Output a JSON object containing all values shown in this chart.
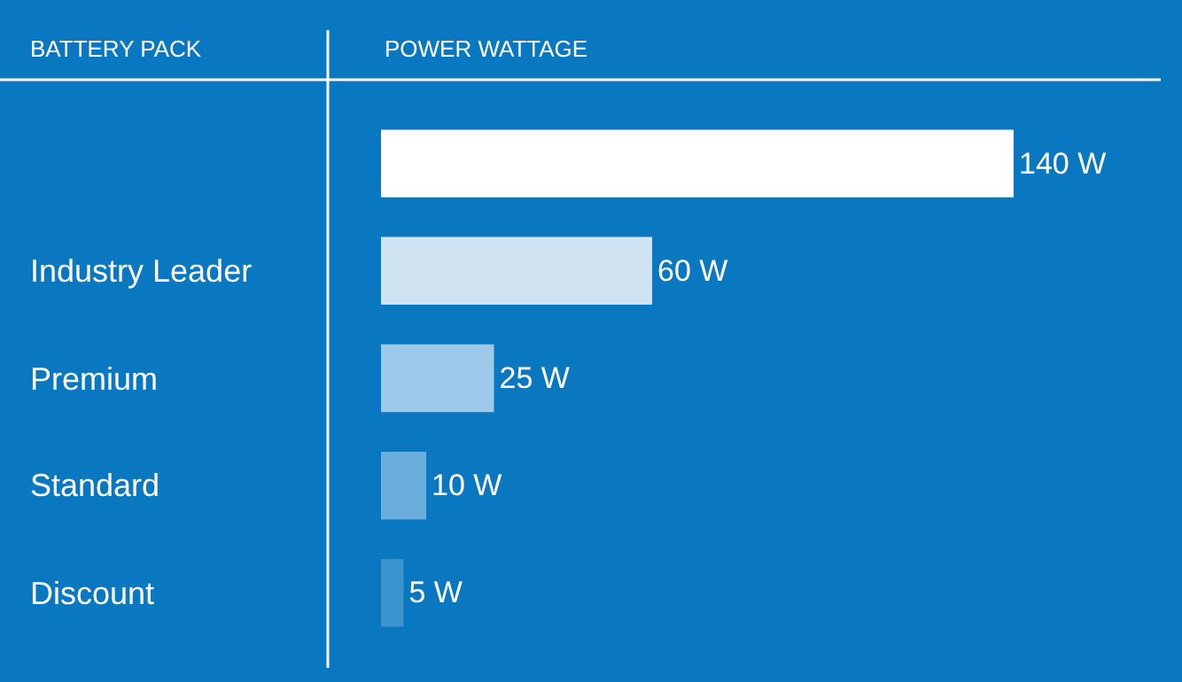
{
  "chart_data": {
    "type": "bar",
    "orientation": "horizontal",
    "ylabel": "BATTERY PACK",
    "xlabel": "POWER WATTAGE",
    "categories": [
      null,
      "Industry Leader",
      "Premium",
      "Standard",
      "Discount"
    ],
    "values": [
      140,
      60,
      25,
      10,
      5
    ],
    "colors": [
      "#ffffff",
      "#cfe3f3",
      "#9dcaea",
      "#6aaedd",
      "#3d95d0"
    ],
    "value_labels": [
      "140 W",
      "60 W",
      "25 W",
      "10 W",
      "5 W"
    ],
    "xlim": [
      0,
      140
    ],
    "tick_labels": "y",
    "grid": false,
    "legend": false
  }
}
